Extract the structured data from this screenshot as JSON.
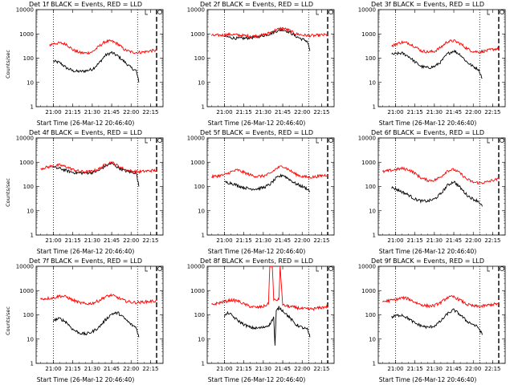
{
  "chart_data": [
    {
      "type": "line",
      "title": "Det 1f BLACK = Events, RED = LLD",
      "xlabel": "Start Time (26-Mar-12 20:46:40)",
      "ylabel": "Counts/sec",
      "yscale": "log",
      "ylim": [
        1,
        10000
      ],
      "x_tick_labels": [
        "21:00",
        "21:15",
        "21:30",
        "21:45",
        "22:00",
        "22:15"
      ],
      "y_tick_labels": [
        "1",
        "10",
        "100",
        "1000",
        "10000"
      ],
      "vertical_markers": [
        "21:00",
        "22:05"
      ],
      "series": [
        {
          "color": "#000000",
          "x": [
            "21:00",
            "21:05",
            "21:10",
            "21:15",
            "21:20",
            "21:25",
            "21:30",
            "21:35",
            "21:40",
            "21:45",
            "21:50",
            "21:55",
            "22:00",
            "22:04",
            "22:06"
          ],
          "values": [
            75,
            65,
            40,
            30,
            28,
            30,
            35,
            60,
            130,
            170,
            120,
            70,
            40,
            30,
            10
          ]
        },
        {
          "color": "#ff0000",
          "x": [
            "20:57",
            "21:00",
            "21:05",
            "21:10",
            "21:15",
            "21:20",
            "21:25",
            "21:30",
            "21:35",
            "21:40",
            "21:45",
            "21:50",
            "21:55",
            "22:00",
            "22:05",
            "22:10",
            "22:15",
            "22:20"
          ],
          "values": [
            350,
            400,
            420,
            380,
            220,
            170,
            160,
            180,
            300,
            480,
            500,
            380,
            220,
            180,
            170,
            180,
            200,
            210
          ]
        }
      ]
    },
    {
      "type": "line",
      "title": "Det 2f BLACK = Events, RED = LLD",
      "xlabel": "Start Time (26-Mar-12 20:46:40)",
      "ylabel": "",
      "yscale": "log",
      "ylim": [
        1,
        10000
      ],
      "x_tick_labels": [
        "21:00",
        "21:15",
        "21:30",
        "21:45",
        "22:00",
        "22:15"
      ],
      "y_tick_labels": [
        "1",
        "10",
        "100",
        "1000",
        "10000"
      ],
      "vertical_markers": [
        "21:00",
        "22:05"
      ],
      "series": [
        {
          "color": "#000000",
          "x": [
            "21:00",
            "21:05",
            "21:10",
            "21:15",
            "21:20",
            "21:25",
            "21:30",
            "21:35",
            "21:40",
            "21:45",
            "21:50",
            "21:55",
            "22:00",
            "22:04",
            "22:06"
          ],
          "values": [
            800,
            700,
            650,
            650,
            700,
            750,
            850,
            1000,
            1300,
            1500,
            1200,
            800,
            600,
            500,
            200
          ]
        },
        {
          "color": "#ff0000",
          "x": [
            "20:50",
            "21:00",
            "21:05",
            "21:10",
            "21:15",
            "21:20",
            "21:25",
            "21:30",
            "21:35",
            "21:40",
            "21:45",
            "21:50",
            "21:55",
            "22:00",
            "22:05",
            "22:10",
            "22:15",
            "22:20"
          ],
          "values": [
            850,
            900,
            950,
            900,
            850,
            800,
            820,
            900,
            1100,
            1500,
            1700,
            1400,
            1000,
            900,
            850,
            850,
            900,
            900
          ]
        }
      ]
    },
    {
      "type": "line",
      "title": "Det 3f BLACK = Events, RED = LLD",
      "xlabel": "Start Time (26-Mar-12 20:46:40)",
      "ylabel": "",
      "yscale": "log",
      "ylim": [
        1,
        10000
      ],
      "x_tick_labels": [
        "21:00",
        "21:15",
        "21:30",
        "21:45",
        "22:00",
        "22:15"
      ],
      "y_tick_labels": [
        "1",
        "10",
        "100",
        "1000",
        "10000"
      ],
      "vertical_markers": [
        "21:00",
        "22:05"
      ],
      "series": [
        {
          "color": "#000000",
          "x": [
            "20:57",
            "21:00",
            "21:05",
            "21:10",
            "21:15",
            "21:20",
            "21:25",
            "21:30",
            "21:35",
            "21:40",
            "21:45",
            "21:50",
            "21:55",
            "22:00",
            "22:04",
            "22:07"
          ],
          "values": [
            140,
            150,
            160,
            120,
            70,
            45,
            40,
            45,
            70,
            150,
            200,
            140,
            70,
            45,
            35,
            15
          ]
        },
        {
          "color": "#ff0000",
          "x": [
            "20:57",
            "21:00",
            "21:05",
            "21:10",
            "21:15",
            "21:20",
            "21:25",
            "21:30",
            "21:35",
            "21:40",
            "21:45",
            "21:50",
            "21:55",
            "22:00",
            "22:05",
            "22:10",
            "22:15",
            "22:20"
          ],
          "values": [
            300,
            380,
            450,
            420,
            300,
            200,
            180,
            190,
            280,
            480,
            520,
            400,
            250,
            190,
            180,
            200,
            230,
            250
          ]
        }
      ]
    },
    {
      "type": "line",
      "title": "Det 4f BLACK = Events, RED = LLD",
      "xlabel": "Start Time (26-Mar-12 20:46:40)",
      "ylabel": "Counts/sec",
      "yscale": "log",
      "ylim": [
        1,
        10000
      ],
      "x_tick_labels": [
        "21:00",
        "21:15",
        "21:30",
        "21:45",
        "22:00",
        "22:15"
      ],
      "y_tick_labels": [
        "1",
        "10",
        "100",
        "1000",
        "10000"
      ],
      "vertical_markers": [
        "21:00",
        "22:05"
      ],
      "series": [
        {
          "color": "#000000",
          "x": [
            "21:00",
            "21:05",
            "21:10",
            "21:15",
            "21:20",
            "21:25",
            "21:30",
            "21:35",
            "21:40",
            "21:45",
            "21:50",
            "21:55",
            "22:00",
            "22:04",
            "22:06"
          ],
          "values": [
            600,
            550,
            450,
            380,
            360,
            360,
            380,
            450,
            700,
            900,
            600,
            450,
            380,
            370,
            100
          ]
        },
        {
          "color": "#ff0000",
          "x": [
            "20:50",
            "21:00",
            "21:05",
            "21:10",
            "21:15",
            "21:20",
            "21:25",
            "21:30",
            "21:35",
            "21:40",
            "21:45",
            "21:50",
            "21:55",
            "22:00",
            "22:05",
            "22:10",
            "22:15",
            "22:20"
          ],
          "values": [
            550,
            700,
            750,
            650,
            500,
            420,
            400,
            420,
            520,
            800,
            1000,
            700,
            500,
            430,
            400,
            420,
            450,
            460
          ]
        }
      ]
    },
    {
      "type": "line",
      "title": "Det 5f BLACK = Events, RED = LLD",
      "xlabel": "Start Time (26-Mar-12 20:46:40)",
      "ylabel": "",
      "yscale": "log",
      "ylim": [
        1,
        10000
      ],
      "x_tick_labels": [
        "21:00",
        "21:15",
        "21:30",
        "21:45",
        "22:00",
        "22:15"
      ],
      "y_tick_labels": [
        "1",
        "10",
        "100",
        "1000",
        "10000"
      ],
      "vertical_markers": [
        "21:00",
        "22:05"
      ],
      "series": [
        {
          "color": "#000000",
          "x": [
            "21:00",
            "21:05",
            "21:10",
            "21:15",
            "21:20",
            "21:25",
            "21:30",
            "21:35",
            "21:40",
            "21:45",
            "21:50",
            "21:55",
            "22:00",
            "22:04",
            "22:06"
          ],
          "values": [
            150,
            140,
            110,
            90,
            80,
            80,
            90,
            120,
            220,
            300,
            200,
            130,
            100,
            80,
            60
          ]
        },
        {
          "color": "#ff0000",
          "x": [
            "20:50",
            "21:00",
            "21:05",
            "21:10",
            "21:15",
            "21:20",
            "21:25",
            "21:30",
            "21:35",
            "21:40",
            "21:45",
            "21:50",
            "21:55",
            "22:00",
            "22:05",
            "22:10",
            "22:15",
            "22:20"
          ],
          "values": [
            250,
            300,
            400,
            480,
            380,
            300,
            260,
            270,
            330,
            550,
            700,
            480,
            320,
            260,
            240,
            250,
            280,
            300
          ]
        }
      ]
    },
    {
      "type": "line",
      "title": "Det 6f BLACK = Events, RED = LLD",
      "xlabel": "Start Time (26-Mar-12 20:46:40)",
      "ylabel": "",
      "yscale": "log",
      "ylim": [
        1,
        10000
      ],
      "x_tick_labels": [
        "21:00",
        "21:15",
        "21:30",
        "21:45",
        "22:00",
        "22:15"
      ],
      "y_tick_labels": [
        "1",
        "10",
        "100",
        "1000",
        "10000"
      ],
      "vertical_markers": [
        "21:00",
        "22:05"
      ],
      "series": [
        {
          "color": "#000000",
          "x": [
            "20:57",
            "21:00",
            "21:05",
            "21:10",
            "21:15",
            "21:20",
            "21:25",
            "21:30",
            "21:35",
            "21:40",
            "21:45",
            "21:50",
            "21:55",
            "22:00",
            "22:04",
            "22:07"
          ],
          "values": [
            90,
            80,
            60,
            45,
            30,
            25,
            25,
            30,
            50,
            110,
            160,
            90,
            45,
            30,
            25,
            15
          ]
        },
        {
          "color": "#ff0000",
          "x": [
            "20:50",
            "21:00",
            "21:05",
            "21:10",
            "21:15",
            "21:20",
            "21:25",
            "21:30",
            "21:35",
            "21:40",
            "21:45",
            "21:50",
            "21:55",
            "22:00",
            "22:05",
            "22:10",
            "22:15",
            "22:20"
          ],
          "values": [
            400,
            500,
            550,
            500,
            350,
            220,
            180,
            180,
            250,
            450,
            500,
            350,
            200,
            150,
            140,
            150,
            180,
            200
          ]
        }
      ]
    },
    {
      "type": "line",
      "title": "Det 7f BLACK = Events, RED = LLD",
      "xlabel": "Start Time (26-Mar-12 20:46:40)",
      "ylabel": "Counts/sec",
      "yscale": "log",
      "ylim": [
        1,
        10000
      ],
      "x_tick_labels": [
        "21:00",
        "21:15",
        "21:30",
        "21:45",
        "22:00",
        "22:15"
      ],
      "y_tick_labels": [
        "1",
        "10",
        "100",
        "1000",
        "10000"
      ],
      "vertical_markers": [
        "21:00",
        "22:05"
      ],
      "series": [
        {
          "color": "#000000",
          "x": [
            "21:00",
            "21:05",
            "21:10",
            "21:15",
            "21:20",
            "21:25",
            "21:30",
            "21:35",
            "21:40",
            "21:45",
            "21:50",
            "21:55",
            "22:00",
            "22:04",
            "22:06"
          ],
          "values": [
            60,
            70,
            50,
            25,
            18,
            16,
            20,
            30,
            60,
            110,
            120,
            70,
            40,
            30,
            12
          ]
        },
        {
          "color": "#ff0000",
          "x": [
            "20:50",
            "21:00",
            "21:05",
            "21:10",
            "21:15",
            "21:20",
            "21:25",
            "21:30",
            "21:35",
            "21:40",
            "21:45",
            "21:50",
            "21:55",
            "22:00",
            "22:05",
            "22:10",
            "22:15",
            "22:20"
          ],
          "values": [
            450,
            500,
            600,
            550,
            400,
            320,
            280,
            300,
            380,
            550,
            650,
            500,
            380,
            330,
            320,
            340,
            360,
            380
          ]
        }
      ]
    },
    {
      "type": "line",
      "title": "Det 8f BLACK = Events, RED = LLD",
      "xlabel": "Start Time (26-Mar-12 20:46:40)",
      "ylabel": "",
      "yscale": "log",
      "ylim": [
        1,
        10000
      ],
      "x_tick_labels": [
        "21:00",
        "21:15",
        "21:30",
        "21:45",
        "22:00",
        "22:15"
      ],
      "y_tick_labels": [
        "1",
        "10",
        "100",
        "1000",
        "10000"
      ],
      "vertical_markers": [
        "21:00",
        "22:05"
      ],
      "series": [
        {
          "color": "#000000",
          "x": [
            "21:00",
            "21:03",
            "21:05",
            "21:10",
            "21:15",
            "21:20",
            "21:25",
            "21:30",
            "21:35",
            "21:38",
            "21:39",
            "21:40",
            "21:42",
            "21:45",
            "21:50",
            "21:55",
            "22:00",
            "22:04",
            "22:06"
          ],
          "values": [
            90,
            120,
            100,
            60,
            40,
            30,
            28,
            30,
            40,
            80,
            5,
            140,
            200,
            150,
            80,
            40,
            30,
            25,
            12
          ]
        },
        {
          "color": "#ff0000",
          "x": [
            "20:50",
            "21:00",
            "21:05",
            "21:10",
            "21:15",
            "21:20",
            "21:25",
            "21:30",
            "21:34",
            "21:35",
            "21:37",
            "21:38",
            "21:42",
            "21:43",
            "21:45",
            "21:50",
            "21:55",
            "22:00",
            "22:05",
            "22:10",
            "22:15",
            "22:20"
          ],
          "values": [
            260,
            350,
            400,
            380,
            280,
            220,
            200,
            220,
            280,
            10000,
            10000,
            400,
            420,
            10000,
            250,
            220,
            200,
            180,
            170,
            180,
            200,
            220
          ]
        }
      ]
    },
    {
      "type": "line",
      "title": "Det 9f BLACK = Events, RED = LLD",
      "xlabel": "Start Time (26-Mar-12 20:46:40)",
      "ylabel": "",
      "yscale": "log",
      "ylim": [
        1,
        10000
      ],
      "x_tick_labels": [
        "21:00",
        "21:15",
        "21:30",
        "21:45",
        "22:00",
        "22:15"
      ],
      "y_tick_labels": [
        "1",
        "10",
        "100",
        "1000",
        "10000"
      ],
      "vertical_markers": [
        "21:00",
        "22:05"
      ],
      "series": [
        {
          "color": "#000000",
          "x": [
            "20:57",
            "21:00",
            "21:05",
            "21:10",
            "21:15",
            "21:20",
            "21:25",
            "21:30",
            "21:35",
            "21:40",
            "21:45",
            "21:50",
            "21:55",
            "22:00",
            "22:04",
            "22:07"
          ],
          "values": [
            80,
            90,
            100,
            70,
            45,
            35,
            30,
            35,
            55,
            110,
            160,
            100,
            55,
            40,
            30,
            15
          ]
        },
        {
          "color": "#ff0000",
          "x": [
            "20:50",
            "21:00",
            "21:05",
            "21:10",
            "21:15",
            "21:20",
            "21:25",
            "21:30",
            "21:35",
            "21:40",
            "21:45",
            "21:50",
            "21:55",
            "22:00",
            "22:05",
            "22:10",
            "22:15",
            "22:20"
          ],
          "values": [
            350,
            420,
            500,
            460,
            330,
            260,
            230,
            240,
            320,
            520,
            550,
            400,
            270,
            230,
            220,
            240,
            270,
            290
          ]
        }
      ]
    }
  ]
}
